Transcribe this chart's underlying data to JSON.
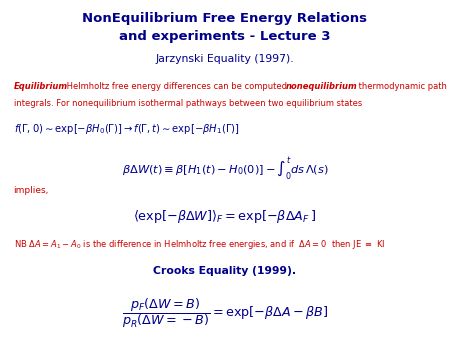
{
  "title_line1": "NonEquilibrium Free Energy Relations",
  "title_line2": "and experiments - Lecture 3",
  "title_color": "#00008B",
  "subtitle": "Jarzynski Equality (1997).",
  "subtitle_color": "#00008B",
  "implies": "implies,",
  "crooks": "Crooks Equality (1999).",
  "bg_color": "#FFFFFF",
  "dark_blue": "#00008B",
  "red": "#CC0000",
  "body_line2": "integrals. For nonequilibrium isothermal pathways between two equilibrium states",
  "nb_line": "NB ",
  "nb_mid": " is the difference in Helmholtz free energies, and if ",
  "nb_end": " then JE ",
  "nb_ki": " KI"
}
